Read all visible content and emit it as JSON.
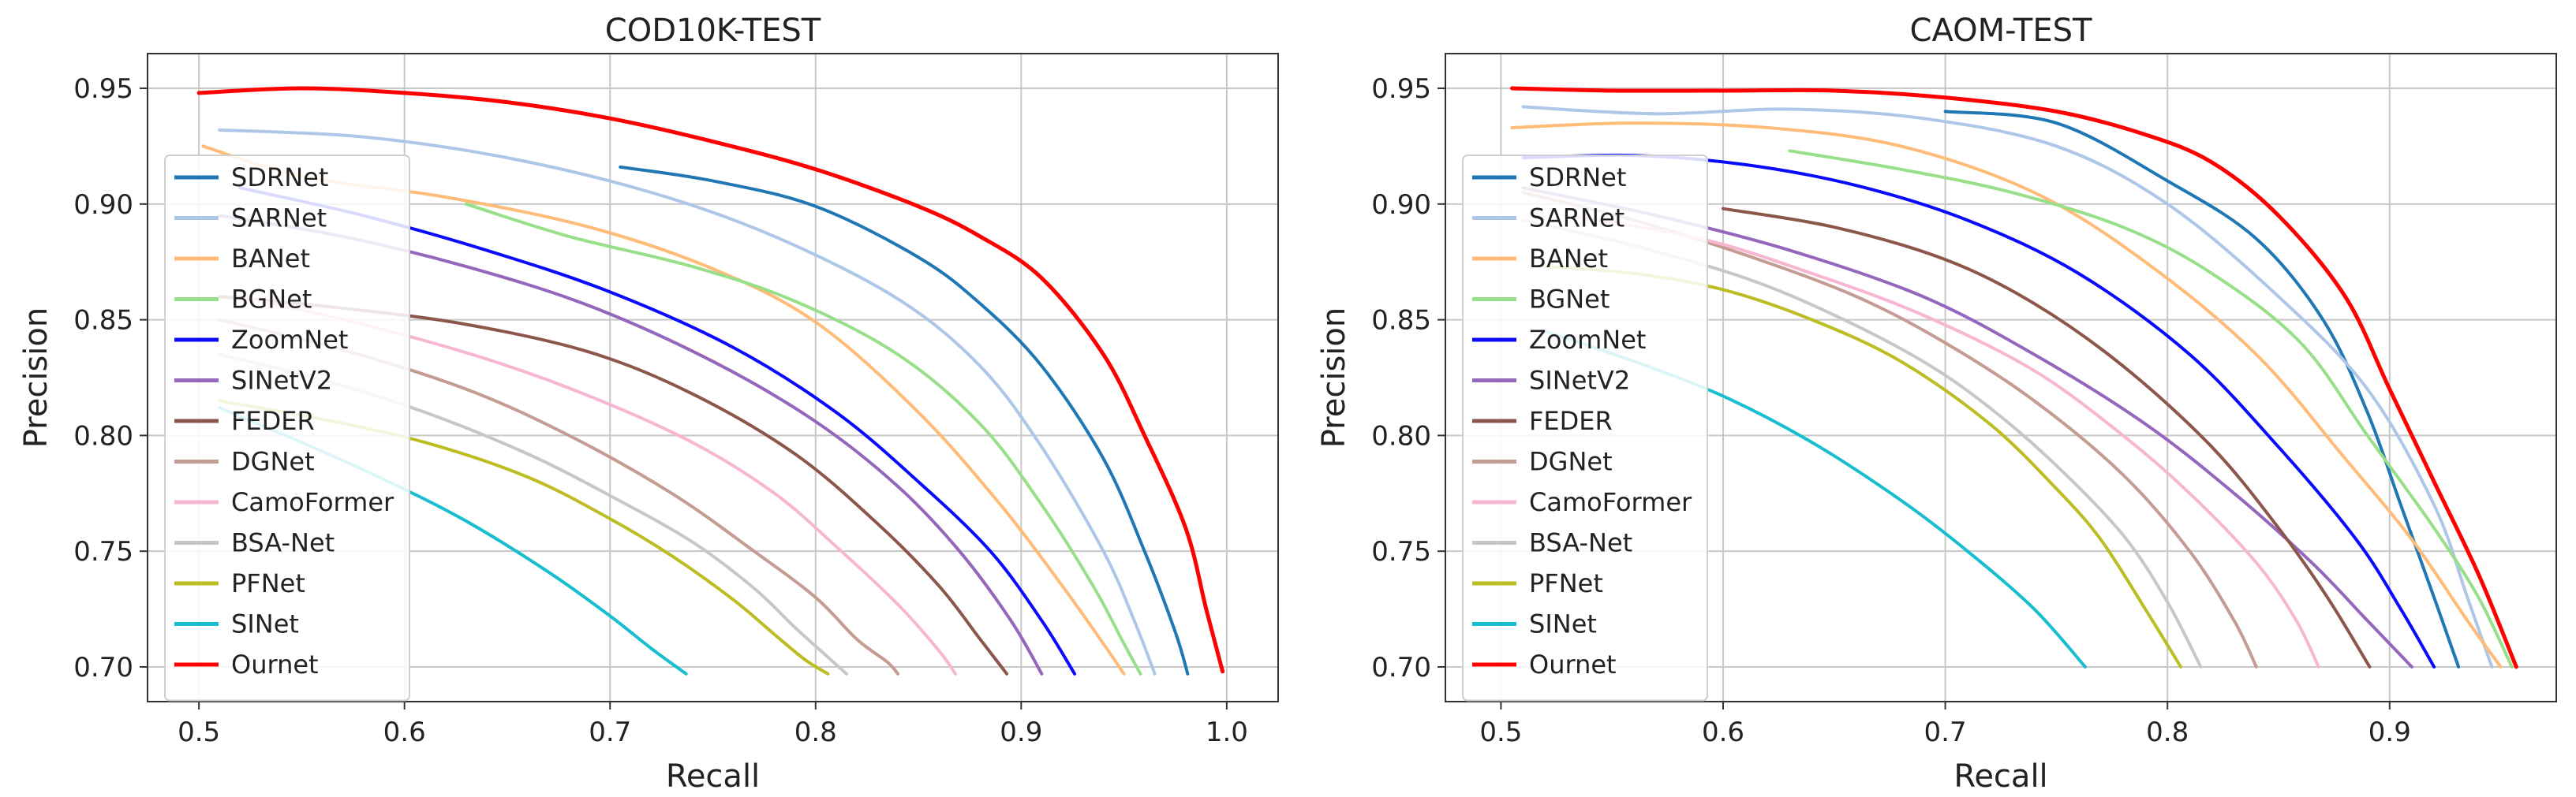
{
  "chart_data": [
    {
      "type": "line",
      "title": "COD10K-TEST",
      "xlabel": "Recall",
      "ylabel": "Precision",
      "xlim": [
        0.475,
        1.025
      ],
      "ylim": [
        0.685,
        0.965
      ],
      "xticks": [
        0.5,
        0.6,
        0.7,
        0.8,
        0.9,
        1.0
      ],
      "xtick_labels": [
        "0.5",
        "0.6",
        "0.7",
        "0.8",
        "0.9",
        "1.0"
      ],
      "yticks": [
        0.7,
        0.75,
        0.8,
        0.85,
        0.9,
        0.95
      ],
      "ytick_labels": [
        "0.70",
        "0.75",
        "0.80",
        "0.85",
        "0.90",
        "0.95"
      ],
      "grid": true,
      "legend_position": "left",
      "series": [
        {
          "name": "SDRNet",
          "color": "#1f77b4",
          "x": [
            0.705,
            0.75,
            0.8,
            0.85,
            0.88,
            0.91,
            0.94,
            0.96,
            0.975,
            0.981
          ],
          "y": [
            0.916,
            0.91,
            0.899,
            0.877,
            0.857,
            0.83,
            0.79,
            0.75,
            0.715,
            0.697
          ]
        },
        {
          "name": "SARNet",
          "color": "#aec7e8",
          "x": [
            0.51,
            0.58,
            0.65,
            0.72,
            0.78,
            0.84,
            0.88,
            0.91,
            0.94,
            0.955,
            0.965
          ],
          "y": [
            0.932,
            0.929,
            0.92,
            0.905,
            0.886,
            0.859,
            0.83,
            0.795,
            0.75,
            0.72,
            0.697
          ]
        },
        {
          "name": "BANet",
          "color": "#ffbb78",
          "x": [
            0.502,
            0.55,
            0.62,
            0.69,
            0.75,
            0.8,
            0.85,
            0.89,
            0.92,
            0.94,
            0.95
          ],
          "y": [
            0.925,
            0.912,
            0.903,
            0.89,
            0.872,
            0.849,
            0.81,
            0.77,
            0.735,
            0.71,
            0.697
          ]
        },
        {
          "name": "BGNet",
          "color": "#98df8a",
          "x": [
            0.63,
            0.68,
            0.74,
            0.79,
            0.84,
            0.88,
            0.91,
            0.935,
            0.95,
            0.958
          ],
          "y": [
            0.9,
            0.886,
            0.873,
            0.858,
            0.835,
            0.805,
            0.77,
            0.735,
            0.71,
            0.697
          ]
        },
        {
          "name": "ZoomNet",
          "color": "#0a0aff",
          "x": [
            0.52,
            0.58,
            0.64,
            0.7,
            0.76,
            0.81,
            0.85,
            0.885,
            0.91,
            0.926
          ],
          "y": [
            0.907,
            0.895,
            0.88,
            0.862,
            0.838,
            0.81,
            0.78,
            0.75,
            0.72,
            0.697
          ]
        },
        {
          "name": "SINetV2",
          "color": "#9467bd",
          "x": [
            0.51,
            0.57,
            0.63,
            0.69,
            0.75,
            0.8,
            0.84,
            0.87,
            0.895,
            0.91
          ],
          "y": [
            0.895,
            0.886,
            0.873,
            0.856,
            0.832,
            0.806,
            0.778,
            0.75,
            0.72,
            0.697
          ]
        },
        {
          "name": "FEDER",
          "color": "#8c564b",
          "x": [
            0.51,
            0.57,
            0.63,
            0.69,
            0.74,
            0.79,
            0.83,
            0.86,
            0.88,
            0.893
          ],
          "y": [
            0.86,
            0.855,
            0.848,
            0.836,
            0.818,
            0.792,
            0.762,
            0.735,
            0.712,
            0.697
          ]
        },
        {
          "name": "DGNet",
          "color": "#c49c94",
          "x": [
            0.51,
            0.57,
            0.63,
            0.68,
            0.73,
            0.77,
            0.8,
            0.82,
            0.835,
            0.84
          ],
          "y": [
            0.85,
            0.837,
            0.82,
            0.8,
            0.775,
            0.75,
            0.73,
            0.712,
            0.702,
            0.697
          ]
        },
        {
          "name": "CamoFormer",
          "color": "#f7b6d2",
          "x": [
            0.52,
            0.58,
            0.64,
            0.69,
            0.74,
            0.78,
            0.81,
            0.84,
            0.86,
            0.868
          ],
          "y": [
            0.86,
            0.848,
            0.833,
            0.817,
            0.797,
            0.775,
            0.752,
            0.727,
            0.707,
            0.697
          ]
        },
        {
          "name": "BSA-Net",
          "color": "#c7c7c7",
          "x": [
            0.51,
            0.56,
            0.61,
            0.66,
            0.7,
            0.74,
            0.77,
            0.79,
            0.805,
            0.815
          ],
          "y": [
            0.835,
            0.824,
            0.81,
            0.792,
            0.774,
            0.754,
            0.734,
            0.717,
            0.705,
            0.697
          ]
        },
        {
          "name": "PFNet",
          "color": "#bcbd22",
          "x": [
            0.51,
            0.56,
            0.61,
            0.66,
            0.7,
            0.73,
            0.76,
            0.78,
            0.795,
            0.806
          ],
          "y": [
            0.815,
            0.807,
            0.797,
            0.782,
            0.764,
            0.748,
            0.729,
            0.714,
            0.703,
            0.697
          ]
        },
        {
          "name": "SINet",
          "color": "#17becf",
          "x": [
            0.51,
            0.55,
            0.59,
            0.63,
            0.67,
            0.7,
            0.72,
            0.737
          ],
          "y": [
            0.812,
            0.797,
            0.781,
            0.763,
            0.741,
            0.722,
            0.708,
            0.697
          ]
        },
        {
          "name": "Ournet",
          "color": "#ff0000",
          "x": [
            0.5,
            0.55,
            0.6,
            0.65,
            0.7,
            0.75,
            0.8,
            0.85,
            0.88,
            0.91,
            0.94,
            0.96,
            0.98,
            0.99,
            0.998
          ],
          "y": [
            0.948,
            0.95,
            0.948,
            0.944,
            0.937,
            0.927,
            0.915,
            0.899,
            0.886,
            0.868,
            0.835,
            0.8,
            0.76,
            0.725,
            0.698
          ]
        }
      ]
    },
    {
      "type": "line",
      "title": "CAOM-TEST",
      "xlabel": "Recall",
      "ylabel": "Precision",
      "xlim": [
        0.475,
        0.975
      ],
      "ylim": [
        0.685,
        0.965
      ],
      "xticks": [
        0.5,
        0.6,
        0.7,
        0.8,
        0.9
      ],
      "xtick_labels": [
        "0.5",
        "0.6",
        "0.7",
        "0.8",
        "0.9"
      ],
      "yticks": [
        0.7,
        0.75,
        0.8,
        0.85,
        0.9,
        0.95
      ],
      "ytick_labels": [
        "0.70",
        "0.75",
        "0.80",
        "0.85",
        "0.90",
        "0.95"
      ],
      "grid": true,
      "legend_position": "left",
      "series": [
        {
          "name": "SDRNet",
          "color": "#1f77b4",
          "x": [
            0.7,
            0.75,
            0.8,
            0.84,
            0.87,
            0.89,
            0.905,
            0.92,
            0.931
          ],
          "y": [
            0.94,
            0.935,
            0.91,
            0.885,
            0.85,
            0.81,
            0.77,
            0.73,
            0.7
          ]
        },
        {
          "name": "SARNet",
          "color": "#aec7e8",
          "x": [
            0.51,
            0.57,
            0.63,
            0.69,
            0.75,
            0.8,
            0.85,
            0.89,
            0.92,
            0.935,
            0.946
          ],
          "y": [
            0.942,
            0.939,
            0.941,
            0.937,
            0.925,
            0.9,
            0.86,
            0.82,
            0.77,
            0.73,
            0.7
          ]
        },
        {
          "name": "BANet",
          "color": "#ffbb78",
          "x": [
            0.505,
            0.56,
            0.62,
            0.68,
            0.74,
            0.79,
            0.84,
            0.88,
            0.91,
            0.935,
            0.95
          ],
          "y": [
            0.933,
            0.935,
            0.933,
            0.925,
            0.905,
            0.875,
            0.835,
            0.79,
            0.755,
            0.72,
            0.7
          ]
        },
        {
          "name": "BGNet",
          "color": "#98df8a",
          "x": [
            0.63,
            0.68,
            0.73,
            0.78,
            0.82,
            0.86,
            0.89,
            0.92,
            0.94,
            0.955
          ],
          "y": [
            0.923,
            0.915,
            0.905,
            0.89,
            0.87,
            0.84,
            0.8,
            0.76,
            0.73,
            0.7
          ]
        },
        {
          "name": "ZoomNet",
          "color": "#0a0aff",
          "x": [
            0.51,
            0.56,
            0.61,
            0.66,
            0.71,
            0.76,
            0.81,
            0.85,
            0.885,
            0.905,
            0.92
          ],
          "y": [
            0.92,
            0.921,
            0.917,
            0.908,
            0.893,
            0.87,
            0.835,
            0.795,
            0.755,
            0.725,
            0.7
          ]
        },
        {
          "name": "SINetV2",
          "color": "#9467bd",
          "x": [
            0.51,
            0.57,
            0.63,
            0.69,
            0.74,
            0.79,
            0.83,
            0.865,
            0.89,
            0.91
          ],
          "y": [
            0.907,
            0.895,
            0.88,
            0.86,
            0.835,
            0.805,
            0.775,
            0.745,
            0.72,
            0.7
          ]
        },
        {
          "name": "FEDER",
          "color": "#8c564b",
          "x": [
            0.6,
            0.65,
            0.7,
            0.74,
            0.78,
            0.82,
            0.85,
            0.872,
            0.891
          ],
          "y": [
            0.898,
            0.89,
            0.876,
            0.857,
            0.83,
            0.795,
            0.76,
            0.73,
            0.7
          ]
        },
        {
          "name": "DGNet",
          "color": "#c49c94",
          "x": [
            0.51,
            0.56,
            0.61,
            0.66,
            0.7,
            0.74,
            0.78,
            0.81,
            0.83,
            0.84
          ],
          "y": [
            0.905,
            0.893,
            0.878,
            0.86,
            0.84,
            0.815,
            0.783,
            0.75,
            0.72,
            0.7
          ]
        },
        {
          "name": "CamoFormer",
          "color": "#f7b6d2",
          "x": [
            0.53,
            0.59,
            0.64,
            0.69,
            0.74,
            0.78,
            0.81,
            0.84,
            0.858,
            0.868
          ],
          "y": [
            0.895,
            0.885,
            0.87,
            0.852,
            0.828,
            0.8,
            0.775,
            0.745,
            0.72,
            0.7
          ]
        },
        {
          "name": "BSA-Net",
          "color": "#c7c7c7",
          "x": [
            0.51,
            0.56,
            0.61,
            0.65,
            0.69,
            0.72,
            0.75,
            0.78,
            0.8,
            0.815
          ],
          "y": [
            0.893,
            0.882,
            0.868,
            0.852,
            0.832,
            0.812,
            0.787,
            0.757,
            0.728,
            0.7
          ]
        },
        {
          "name": "PFNet",
          "color": "#bcbd22",
          "x": [
            0.52,
            0.56,
            0.6,
            0.64,
            0.68,
            0.72,
            0.75,
            0.77,
            0.79,
            0.806
          ],
          "y": [
            0.873,
            0.87,
            0.863,
            0.85,
            0.832,
            0.805,
            0.777,
            0.755,
            0.725,
            0.7
          ]
        },
        {
          "name": "SINet",
          "color": "#17becf",
          "x": [
            0.52,
            0.56,
            0.6,
            0.64,
            0.68,
            0.71,
            0.74,
            0.763
          ],
          "y": [
            0.845,
            0.832,
            0.817,
            0.797,
            0.772,
            0.75,
            0.725,
            0.7
          ]
        },
        {
          "name": "Ournet",
          "color": "#ff0000",
          "x": [
            0.505,
            0.55,
            0.6,
            0.65,
            0.7,
            0.75,
            0.79,
            0.82,
            0.85,
            0.88,
            0.9,
            0.92,
            0.94,
            0.957
          ],
          "y": [
            0.95,
            0.949,
            0.949,
            0.949,
            0.946,
            0.94,
            0.93,
            0.918,
            0.895,
            0.86,
            0.82,
            0.78,
            0.74,
            0.7
          ]
        }
      ]
    }
  ]
}
